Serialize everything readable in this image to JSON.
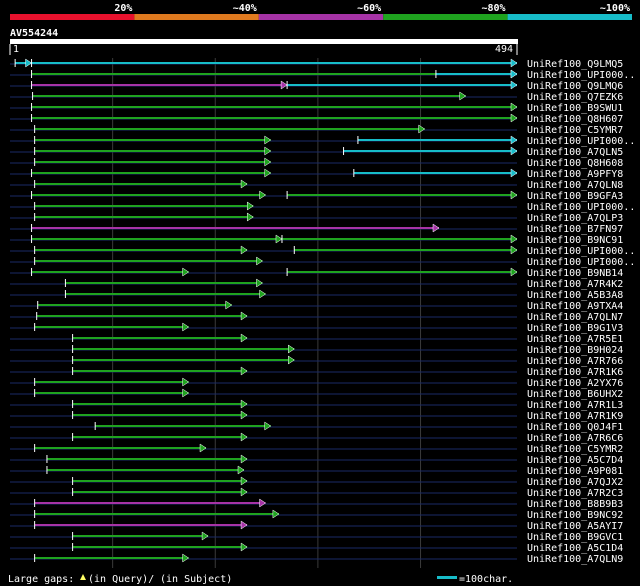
{
  "chart_data": {
    "type": "alignment",
    "query": {
      "name": "AV554244",
      "start": "1",
      "end": "494",
      "length": 494
    },
    "identity_legend": [
      {
        "label": "20%",
        "color": "#e8112d"
      },
      {
        "label": "~40%",
        "color": "#e07a1f"
      },
      {
        "label": "~60%",
        "color": "#a633a6"
      },
      {
        "label": "~80%",
        "color": "#1fa31f"
      },
      {
        "label": "~100%",
        "color": "#17bcc9"
      }
    ],
    "hits": [
      {
        "name": "UniRef100_Q9LMQ5",
        "segments": [
          {
            "s": 5,
            "e": 21,
            "c": "#17bcc9"
          },
          {
            "s": 21,
            "e": 494,
            "c": "#17bcc9"
          }
        ]
      },
      {
        "name": "UniRef100_UPI000..",
        "segments": [
          {
            "s": 21,
            "e": 494,
            "c": "#1fa31f"
          },
          {
            "s": 415,
            "e": 494,
            "c": "#17bcc9"
          }
        ]
      },
      {
        "name": "UniRef100_Q9LMQ6",
        "segments": [
          {
            "s": 21,
            "e": 270,
            "c": "#a633a6"
          },
          {
            "s": 270,
            "e": 494,
            "c": "#17bcc9"
          }
        ]
      },
      {
        "name": "UniRef100_Q7EZK6",
        "segments": [
          {
            "s": 22,
            "e": 444,
            "c": "#1fa31f"
          }
        ]
      },
      {
        "name": "UniRef100_B9SWU1",
        "segments": [
          {
            "s": 21,
            "e": 494,
            "c": "#1fa31f"
          }
        ]
      },
      {
        "name": "UniRef100_Q8H607",
        "segments": [
          {
            "s": 21,
            "e": 494,
            "c": "#1fa31f"
          }
        ]
      },
      {
        "name": "UniRef100_C5YMR7",
        "segments": [
          {
            "s": 24,
            "e": 404,
            "c": "#1fa31f"
          }
        ]
      },
      {
        "name": "UniRef100_UPI000..",
        "segments": [
          {
            "s": 24,
            "e": 254,
            "c": "#1fa31f"
          },
          {
            "s": 339,
            "e": 494,
            "c": "#17bcc9"
          }
        ]
      },
      {
        "name": "UniRef100_A7QLN5",
        "segments": [
          {
            "s": 24,
            "e": 254,
            "c": "#1fa31f"
          },
          {
            "s": 325,
            "e": 494,
            "c": "#17bcc9"
          }
        ]
      },
      {
        "name": "UniRef100_Q8H608",
        "segments": [
          {
            "s": 24,
            "e": 254,
            "c": "#1fa31f"
          }
        ]
      },
      {
        "name": "UniRef100_A9PFY8",
        "segments": [
          {
            "s": 21,
            "e": 254,
            "c": "#1fa31f"
          },
          {
            "s": 335,
            "e": 494,
            "c": "#17bcc9"
          }
        ]
      },
      {
        "name": "UniRef100_A7QLN8",
        "segments": [
          {
            "s": 24,
            "e": 231,
            "c": "#1fa31f"
          }
        ]
      },
      {
        "name": "UniRef100_B9GFA3",
        "segments": [
          {
            "s": 21,
            "e": 249,
            "c": "#1fa31f"
          },
          {
            "s": 270,
            "e": 494,
            "c": "#1fa31f"
          }
        ]
      },
      {
        "name": "UniRef100_UPI000..",
        "segments": [
          {
            "s": 24,
            "e": 237,
            "c": "#1fa31f"
          }
        ]
      },
      {
        "name": "UniRef100_A7QLP3",
        "segments": [
          {
            "s": 24,
            "e": 237,
            "c": "#1fa31f"
          }
        ]
      },
      {
        "name": "UniRef100_B7FN97",
        "segments": [
          {
            "s": 21,
            "e": 418,
            "c": "#a633a6"
          }
        ]
      },
      {
        "name": "UniRef100_B9NC91",
        "segments": [
          {
            "s": 21,
            "e": 265,
            "c": "#1fa31f"
          },
          {
            "s": 265,
            "e": 494,
            "c": "#1fa31f"
          }
        ]
      },
      {
        "name": "UniRef100_UPI000..",
        "segments": [
          {
            "s": 24,
            "e": 231,
            "c": "#1fa31f"
          },
          {
            "s": 277,
            "e": 494,
            "c": "#1fa31f"
          }
        ]
      },
      {
        "name": "UniRef100_UPI000..",
        "segments": [
          {
            "s": 24,
            "e": 246,
            "c": "#1fa31f"
          }
        ]
      },
      {
        "name": "UniRef100_B9NB14",
        "segments": [
          {
            "s": 21,
            "e": 174,
            "c": "#1fa31f"
          },
          {
            "s": 270,
            "e": 494,
            "c": "#1fa31f"
          }
        ]
      },
      {
        "name": "UniRef100_A7R4K2",
        "segments": [
          {
            "s": 54,
            "e": 246,
            "c": "#1fa31f"
          }
        ]
      },
      {
        "name": "UniRef100_A5B3A8",
        "segments": [
          {
            "s": 54,
            "e": 249,
            "c": "#1fa31f"
          }
        ]
      },
      {
        "name": "UniRef100_A9TXA4",
        "segments": [
          {
            "s": 27,
            "e": 216,
            "c": "#1fa31f"
          }
        ]
      },
      {
        "name": "UniRef100_A7QLN7",
        "segments": [
          {
            "s": 26,
            "e": 231,
            "c": "#1fa31f"
          }
        ]
      },
      {
        "name": "UniRef100_B9G1V3",
        "segments": [
          {
            "s": 24,
            "e": 174,
            "c": "#1fa31f"
          }
        ]
      },
      {
        "name": "UniRef100_A7R5E1",
        "segments": [
          {
            "s": 61,
            "e": 231,
            "c": "#1fa31f"
          }
        ]
      },
      {
        "name": "UniRef100_B9H024",
        "segments": [
          {
            "s": 61,
            "e": 277,
            "c": "#1fa31f"
          }
        ]
      },
      {
        "name": "UniRef100_A7R766",
        "segments": [
          {
            "s": 61,
            "e": 277,
            "c": "#1fa31f"
          }
        ]
      },
      {
        "name": "UniRef100_A7R1K6",
        "segments": [
          {
            "s": 61,
            "e": 231,
            "c": "#1fa31f"
          }
        ]
      },
      {
        "name": "UniRef100_A2YX76",
        "segments": [
          {
            "s": 24,
            "e": 174,
            "c": "#1fa31f"
          }
        ]
      },
      {
        "name": "UniRef100_B6UHX2",
        "segments": [
          {
            "s": 24,
            "e": 174,
            "c": "#1fa31f"
          }
        ]
      },
      {
        "name": "UniRef100_A7R1L3",
        "segments": [
          {
            "s": 61,
            "e": 231,
            "c": "#1fa31f"
          }
        ]
      },
      {
        "name": "UniRef100_A7R1K9",
        "segments": [
          {
            "s": 61,
            "e": 231,
            "c": "#1fa31f"
          }
        ]
      },
      {
        "name": "UniRef100_Q0J4F1",
        "segments": [
          {
            "s": 83,
            "e": 254,
            "c": "#1fa31f"
          }
        ]
      },
      {
        "name": "UniRef100_A7R6C6",
        "segments": [
          {
            "s": 61,
            "e": 231,
            "c": "#1fa31f"
          }
        ]
      },
      {
        "name": "UniRef100_C5YMR2",
        "segments": [
          {
            "s": 24,
            "e": 191,
            "c": "#1fa31f"
          }
        ]
      },
      {
        "name": "UniRef100_A5C7D4",
        "segments": [
          {
            "s": 36,
            "e": 231,
            "c": "#1fa31f"
          }
        ]
      },
      {
        "name": "UniRef100_A9P081",
        "segments": [
          {
            "s": 36,
            "e": 228,
            "c": "#1fa31f"
          }
        ]
      },
      {
        "name": "UniRef100_A7QJX2",
        "segments": [
          {
            "s": 61,
            "e": 231,
            "c": "#1fa31f"
          }
        ]
      },
      {
        "name": "UniRef100_A7R2C3",
        "segments": [
          {
            "s": 61,
            "e": 231,
            "c": "#1fa31f"
          }
        ]
      },
      {
        "name": "UniRef100_B8B9B3",
        "segments": [
          {
            "s": 24,
            "e": 249,
            "c": "#a633a6"
          }
        ]
      },
      {
        "name": "UniRef100_B9NC92",
        "segments": [
          {
            "s": 24,
            "e": 262,
            "c": "#1fa31f"
          }
        ]
      },
      {
        "name": "UniRef100_A5AYI7",
        "segments": [
          {
            "s": 24,
            "e": 231,
            "c": "#a633a6"
          }
        ]
      },
      {
        "name": "UniRef100_B9GVC1",
        "segments": [
          {
            "s": 61,
            "e": 193,
            "c": "#1fa31f"
          }
        ]
      },
      {
        "name": "UniRef100_A5C1D4",
        "segments": [
          {
            "s": 61,
            "e": 231,
            "c": "#1fa31f"
          }
        ]
      },
      {
        "name": "UniRef100_A7QLN9",
        "segments": [
          {
            "s": 24,
            "e": 174,
            "c": "#1fa31f"
          }
        ]
      }
    ],
    "footer": {
      "gaps_label": "Large gaps:",
      "in_query": "(in Query)/",
      "in_subject": "(in Subject)",
      "scale_label": "=100char."
    }
  }
}
